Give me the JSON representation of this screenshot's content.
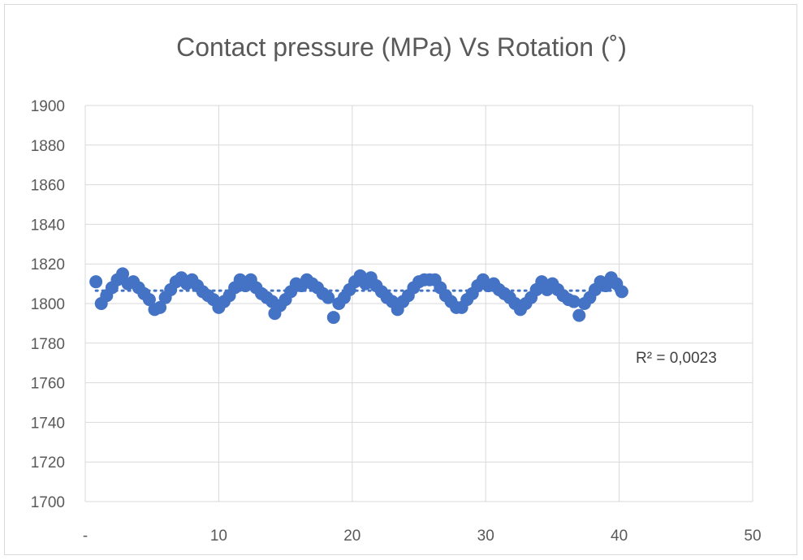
{
  "chart_data": {
    "type": "scatter",
    "title": "Contact pressure (MPa) Vs Rotation (˚)",
    "xlabel": "",
    "ylabel": "",
    "xlim": [
      0,
      50
    ],
    "ylim": [
      1700,
      1900
    ],
    "x_ticks": [
      "-",
      "10",
      "20",
      "30",
      "40",
      "50"
    ],
    "y_ticks": [
      "1700",
      "1720",
      "1740",
      "1760",
      "1780",
      "1800",
      "1820",
      "1840",
      "1860",
      "1880",
      "1900"
    ],
    "grid": true,
    "trendline": {
      "type": "linear",
      "style": "dotted",
      "value": 1806.5,
      "r2_label": "R² = 0,0023"
    },
    "series": [
      {
        "color": "#4472C4",
        "points": [
          [
            0.8,
            1811
          ],
          [
            1.2,
            1800
          ],
          [
            1.6,
            1804
          ],
          [
            2.0,
            1808
          ],
          [
            2.4,
            1812
          ],
          [
            2.8,
            1815
          ],
          [
            3.2,
            1810
          ],
          [
            3.6,
            1811
          ],
          [
            4.0,
            1808
          ],
          [
            4.4,
            1805
          ],
          [
            4.8,
            1802
          ],
          [
            5.2,
            1797
          ],
          [
            5.6,
            1798
          ],
          [
            6.0,
            1803
          ],
          [
            6.4,
            1807
          ],
          [
            6.8,
            1811
          ],
          [
            7.2,
            1813
          ],
          [
            7.6,
            1810
          ],
          [
            8.0,
            1812
          ],
          [
            8.4,
            1809
          ],
          [
            8.8,
            1806
          ],
          [
            9.2,
            1804
          ],
          [
            9.6,
            1802
          ],
          [
            10.0,
            1798
          ],
          [
            10.4,
            1801
          ],
          [
            10.8,
            1804
          ],
          [
            11.2,
            1808
          ],
          [
            11.6,
            1812
          ],
          [
            12.0,
            1809
          ],
          [
            12.4,
            1812
          ],
          [
            12.8,
            1808
          ],
          [
            13.2,
            1805
          ],
          [
            13.6,
            1803
          ],
          [
            14.0,
            1801
          ],
          [
            14.2,
            1795
          ],
          [
            14.6,
            1799
          ],
          [
            15.0,
            1802
          ],
          [
            15.4,
            1806
          ],
          [
            15.8,
            1810
          ],
          [
            16.2,
            1809
          ],
          [
            16.6,
            1812
          ],
          [
            17.0,
            1810
          ],
          [
            17.4,
            1808
          ],
          [
            17.8,
            1805
          ],
          [
            18.2,
            1803
          ],
          [
            18.6,
            1793
          ],
          [
            19.0,
            1800
          ],
          [
            19.4,
            1803
          ],
          [
            19.8,
            1807
          ],
          [
            20.2,
            1811
          ],
          [
            20.6,
            1814
          ],
          [
            21.0,
            1810
          ],
          [
            21.4,
            1813
          ],
          [
            21.8,
            1809
          ],
          [
            22.2,
            1806
          ],
          [
            22.6,
            1803
          ],
          [
            23.0,
            1801
          ],
          [
            23.4,
            1797
          ],
          [
            23.8,
            1801
          ],
          [
            24.2,
            1804
          ],
          [
            24.6,
            1808
          ],
          [
            25.0,
            1811
          ],
          [
            25.4,
            1812
          ],
          [
            25.8,
            1812
          ],
          [
            26.2,
            1812
          ],
          [
            26.6,
            1808
          ],
          [
            27.0,
            1804
          ],
          [
            27.4,
            1801
          ],
          [
            27.8,
            1798
          ],
          [
            28.2,
            1798
          ],
          [
            28.6,
            1802
          ],
          [
            29.0,
            1805
          ],
          [
            29.4,
            1809
          ],
          [
            29.8,
            1812
          ],
          [
            30.2,
            1809
          ],
          [
            30.6,
            1810
          ],
          [
            31.0,
            1807
          ],
          [
            31.4,
            1805
          ],
          [
            31.8,
            1803
          ],
          [
            32.2,
            1800
          ],
          [
            32.6,
            1797
          ],
          [
            33.0,
            1800
          ],
          [
            33.4,
            1803
          ],
          [
            33.8,
            1807
          ],
          [
            34.2,
            1811
          ],
          [
            34.6,
            1807
          ],
          [
            35.0,
            1810
          ],
          [
            35.4,
            1807
          ],
          [
            35.8,
            1804
          ],
          [
            36.2,
            1802
          ],
          [
            36.6,
            1801
          ],
          [
            37.0,
            1794
          ],
          [
            37.4,
            1800
          ],
          [
            37.8,
            1803
          ],
          [
            38.2,
            1807
          ],
          [
            38.6,
            1811
          ],
          [
            39.0,
            1809
          ],
          [
            39.4,
            1813
          ],
          [
            39.8,
            1810
          ],
          [
            40.2,
            1806
          ]
        ]
      }
    ]
  }
}
